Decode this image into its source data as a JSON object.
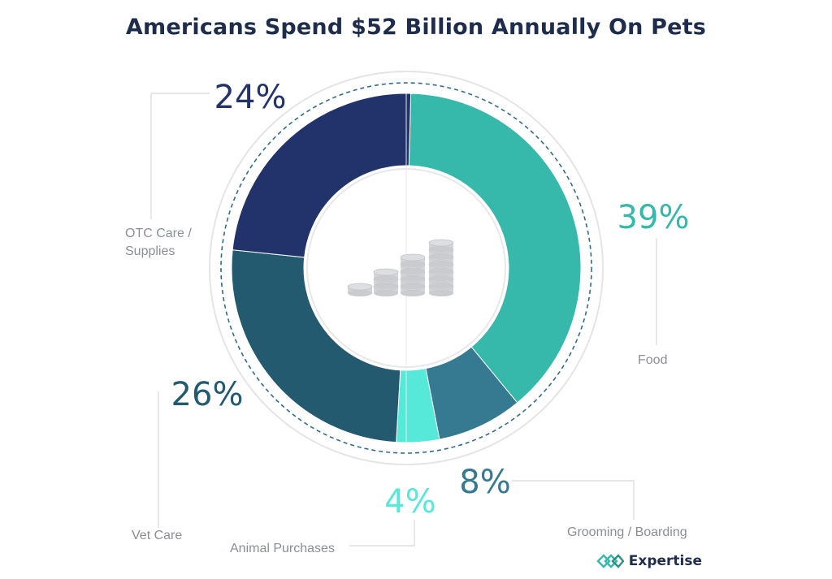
{
  "chart_data": {
    "type": "donut",
    "title": "Americans Spend $52 Billion Annually On Pets",
    "slices": [
      {
        "label": "Food",
        "value": 39,
        "display": "39%",
        "color": "#36b8ab"
      },
      {
        "label": "Grooming / Boarding",
        "value": 8,
        "display": "8%",
        "color": "#357a90"
      },
      {
        "label": "Animal Purchases",
        "value": 4,
        "display": "4%",
        "color": "#56e8d9"
      },
      {
        "label": "Vet Care",
        "value": 26,
        "display": "26%",
        "color": "#245a70"
      },
      {
        "label": "OTC Care / Supplies",
        "value": 24,
        "display": "24%",
        "color": "#22326b"
      }
    ],
    "center_icon": "coin-stacks-icon"
  },
  "brand": {
    "name": "Expertise",
    "icon": "expertise-logo-icon",
    "color": "#36b8ab"
  }
}
